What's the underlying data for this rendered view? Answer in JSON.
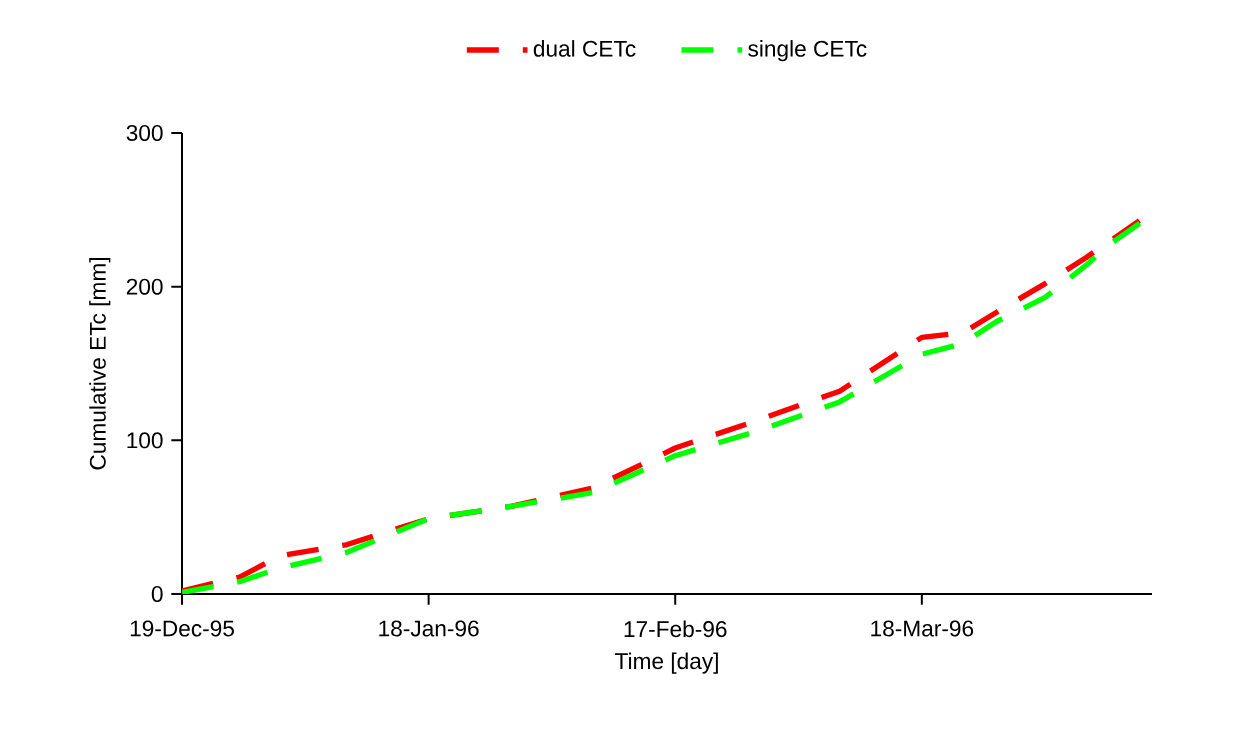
{
  "chart_data": {
    "type": "line",
    "xlabel": "Time [day]",
    "ylabel": "Cumulative ETc [mm]",
    "x": [
      "1995-12-19",
      "1995-12-26",
      "1995-12-31",
      "1996-01-08",
      "1996-01-18",
      "1996-01-28",
      "1996-02-07",
      "1996-02-17",
      "1996-02-27",
      "1996-03-08",
      "1996-03-18",
      "1996-03-23",
      "1996-03-27",
      "1996-04-02",
      "1996-04-07",
      "1996-04-10",
      "1996-04-14"
    ],
    "series": [
      {
        "name": "dual CETc",
        "color": "#ff0000",
        "values": [
          2,
          11,
          25,
          32,
          49,
          57,
          69,
          95,
          113,
          132,
          167,
          170,
          183,
          202,
          219,
          230,
          245
        ]
      },
      {
        "name": "single CETc",
        "color": "#00ff00",
        "values": [
          1,
          8,
          17,
          27,
          49,
          57,
          66,
          90,
          106,
          125,
          156,
          163,
          177,
          193,
          214,
          228,
          243
        ]
      }
    ],
    "xlim": [
      "1995-12-19",
      "1996-04-15"
    ],
    "xticks": [
      {
        "value": "1995-12-19",
        "label": "19-Dec-95"
      },
      {
        "value": "1996-01-18",
        "label": "18-Jan-96"
      },
      {
        "value": "1996-02-17",
        "label": "17-Feb-96"
      },
      {
        "value": "1996-03-18",
        "label": "18-Mar-96"
      }
    ],
    "ylim": [
      0,
      300
    ],
    "yticks": [
      0,
      100,
      200,
      300
    ],
    "grid": false,
    "legend": "top",
    "marker": "none",
    "line_style": "dashed"
  }
}
